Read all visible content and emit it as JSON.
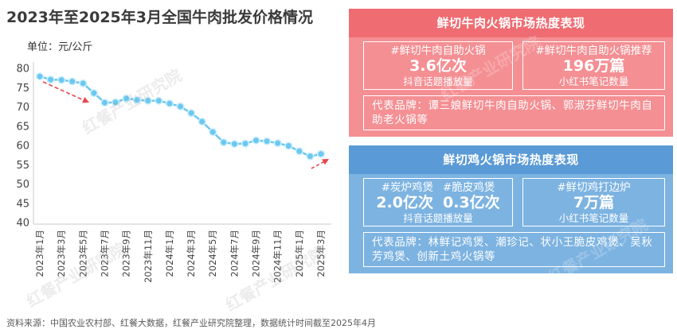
{
  "chart_data": {
    "type": "line",
    "title": "2023年至2025年3月全国牛肉批发价格情况",
    "ylabel": "单位：元/公斤",
    "xlabel": "",
    "categories": [
      "2023年1月",
      "2023年2月",
      "2023年3月",
      "2023年4月",
      "2023年5月",
      "2023年6月",
      "2023年7月",
      "2023年8月",
      "2023年9月",
      "2023年10月",
      "2023年11月",
      "2023年12月",
      "2024年1月",
      "2024年2月",
      "2024年3月",
      "2024年4月",
      "2024年5月",
      "2024年6月",
      "2024年7月",
      "2024年8月",
      "2024年9月",
      "2024年10月",
      "2024年11月",
      "2024年12月",
      "2025年1月",
      "2025年2月",
      "2025年3月"
    ],
    "series": [
      {
        "values": [
          78.1,
          77.3,
          77.2,
          76.8,
          76.3,
          73.8,
          71.3,
          71.4,
          72.4,
          72.0,
          71.8,
          71.8,
          71.1,
          70.3,
          68.6,
          66.4,
          63.7,
          61.0,
          60.6,
          60.7,
          61.5,
          61.3,
          60.8,
          60.1,
          58.7,
          57.4,
          58.0
        ]
      }
    ],
    "ylim": [
      40,
      80
    ],
    "yticks": [
      80,
      75,
      70,
      65,
      60,
      55,
      50,
      45,
      40
    ],
    "grid": false,
    "legend": "none",
    "line_color": "#6CC8F0"
  },
  "panels": {
    "beef": {
      "title": "鲜切牛肉火锅市场热度表现",
      "douyin": {
        "tags": [
          "#鲜切牛肉自助火锅"
        ],
        "values": [
          "3.6亿次"
        ],
        "caption": "抖音话题播放量"
      },
      "xiaohongshu": {
        "tags": [
          "#鲜切牛肉自助火锅推荐"
        ],
        "values": [
          "196万篇"
        ],
        "caption": "小红书笔记数量"
      },
      "brands": "代表品牌：谭三娘鲜切牛肉自助火锅、郭淑芬鲜切牛肉自助老火锅等"
    },
    "chicken": {
      "title": "鲜切鸡火锅市场热度表现",
      "douyin": {
        "tags": [
          "#炭炉鸡煲",
          "#脆皮鸡煲"
        ],
        "values": [
          "2.0亿次",
          "0.3亿次"
        ],
        "caption": "抖音话题播放量"
      },
      "xiaohongshu": {
        "tags": [
          "#鲜切鸡打边炉"
        ],
        "values": [
          "7万篇"
        ],
        "caption": "小红书笔记数量"
      },
      "brands": "代表品牌：林鲜记鸡煲、潮珍记、状小王脆皮鸡煲、吴秋芳鸡煲、创新土鸡火锅等"
    }
  },
  "colors": {
    "beef_panel": "#F48F93",
    "beef_header": "#EF6C72",
    "chicken_panel": "#7DB3E1",
    "chicken_header": "#5A9AD6",
    "trend_arrow": "#E8464B"
  },
  "source": "资料来源：中国农业农村部、红餐大数据，红餐产业研究院整理，数据统计时间截至2025年4月",
  "watermark": "红餐产业研究院"
}
